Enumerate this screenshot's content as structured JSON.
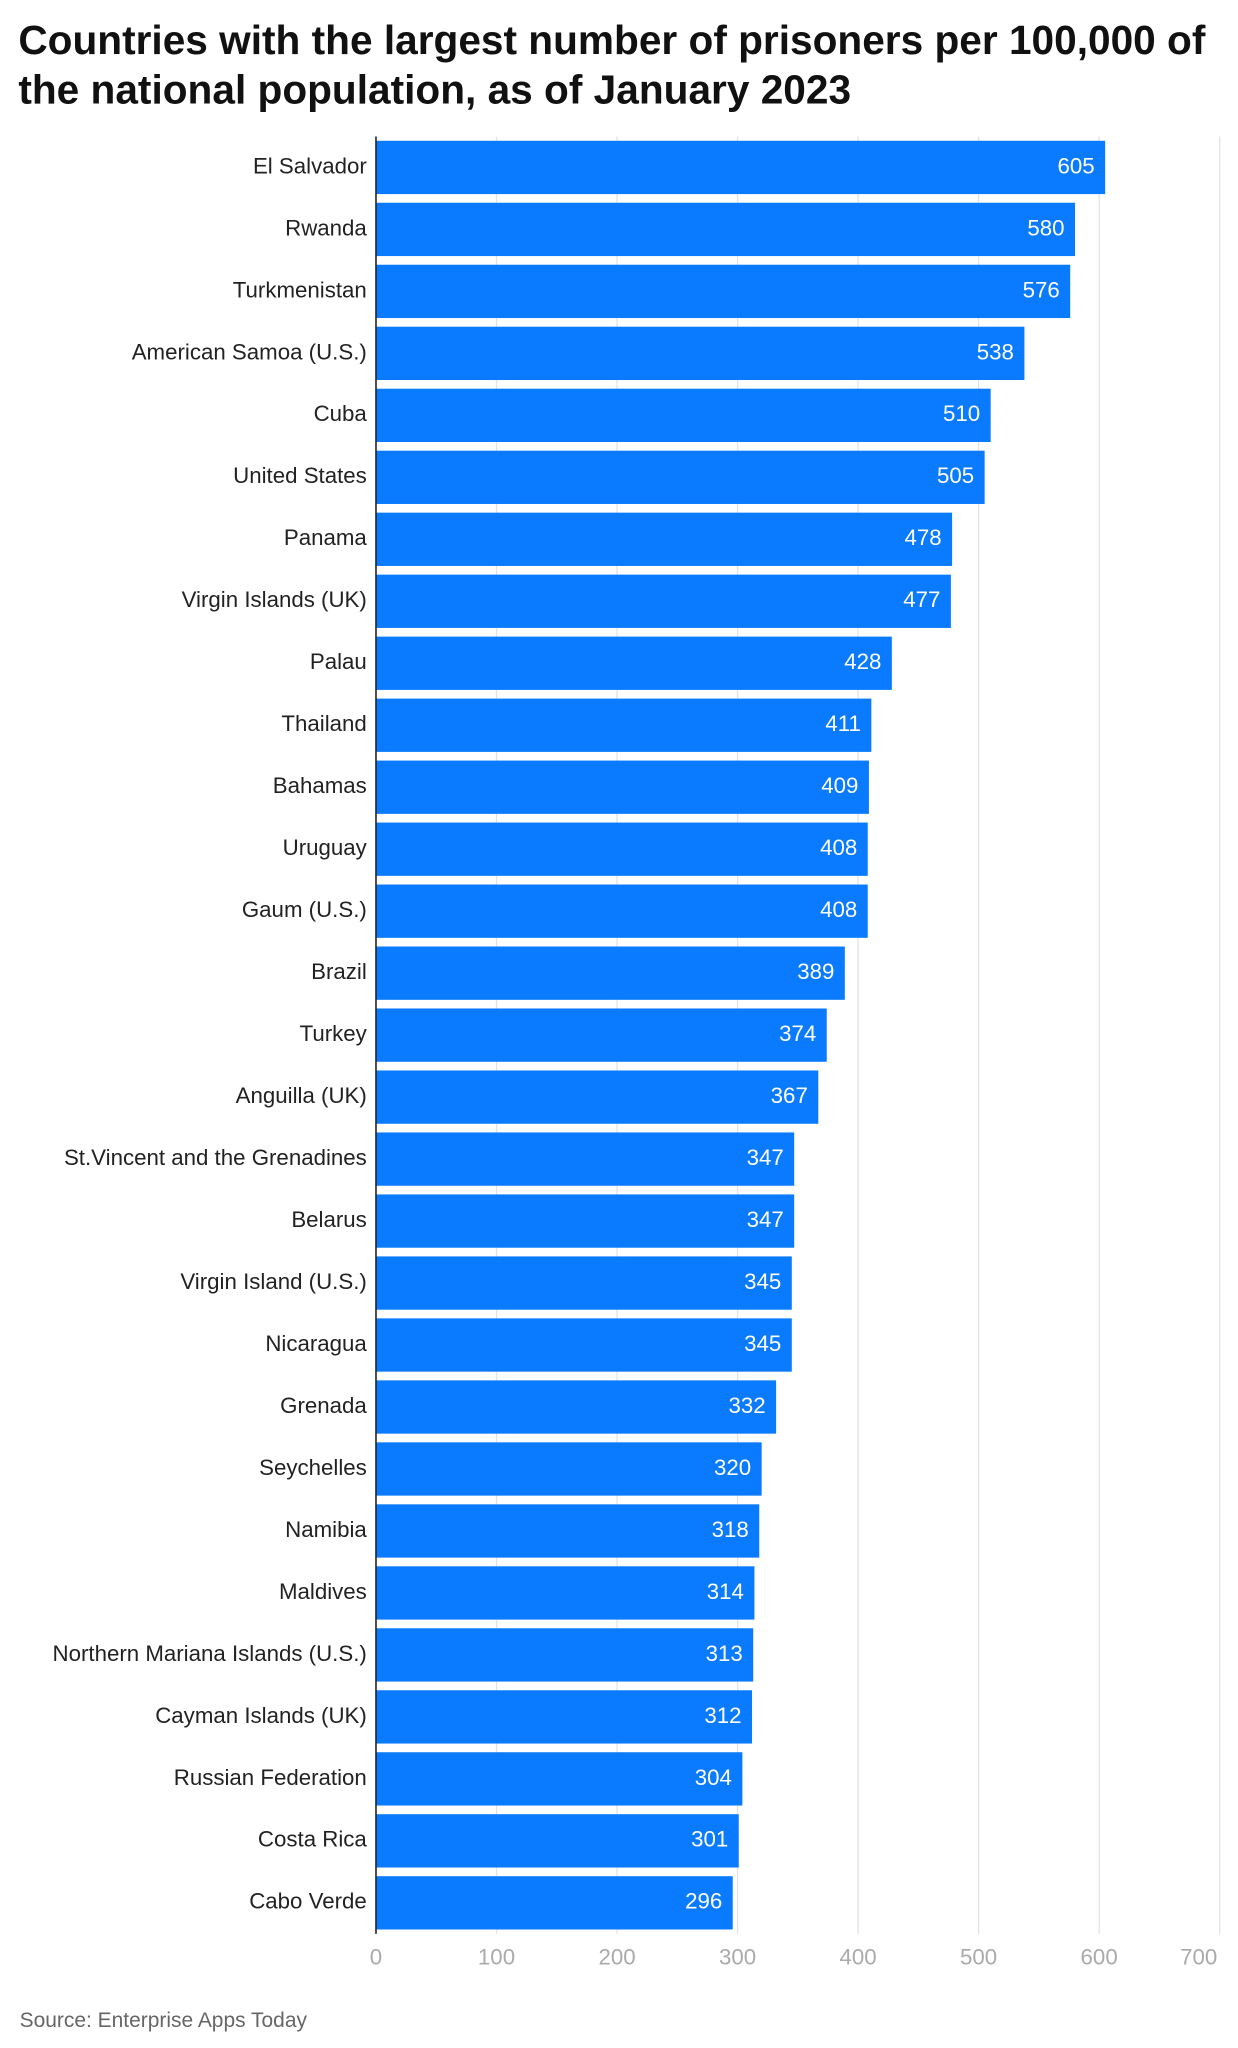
{
  "chart_data": {
    "type": "bar",
    "orientation": "horizontal",
    "title": "Countries with the largest number of prisoners per 100,000 of the national population, as of January 2023",
    "source": "Source: Enterprise Apps Today",
    "categories": [
      "El Salvador",
      "Rwanda",
      "Turkmenistan",
      "American Samoa (U.S.)",
      "Cuba",
      "United States",
      "Panama",
      "Virgin Islands (UK)",
      "Palau",
      "Thailand",
      "Bahamas",
      "Uruguay",
      "Gaum (U.S.)",
      "Brazil",
      "Turkey",
      "Anguilla (UK)",
      "St.Vincent and the Grenadines",
      "Belarus",
      "Virgin Island (U.S.)",
      "Nicaragua",
      "Grenada",
      "Seychelles",
      "Namibia",
      "Maldives",
      "Northern Mariana Islands (U.S.)",
      "Cayman Islands (UK)",
      "Russian Federation",
      "Costa Rica",
      "Cabo Verde"
    ],
    "values": [
      605,
      580,
      576,
      538,
      510,
      505,
      478,
      477,
      428,
      411,
      409,
      408,
      408,
      389,
      374,
      367,
      347,
      347,
      345,
      345,
      332,
      320,
      318,
      314,
      313,
      312,
      304,
      301,
      296
    ],
    "color": "#0a7bff",
    "xlim": [
      0,
      700
    ],
    "xticks": [
      0,
      100,
      200,
      300,
      400,
      500,
      600,
      700
    ],
    "grid": true
  }
}
